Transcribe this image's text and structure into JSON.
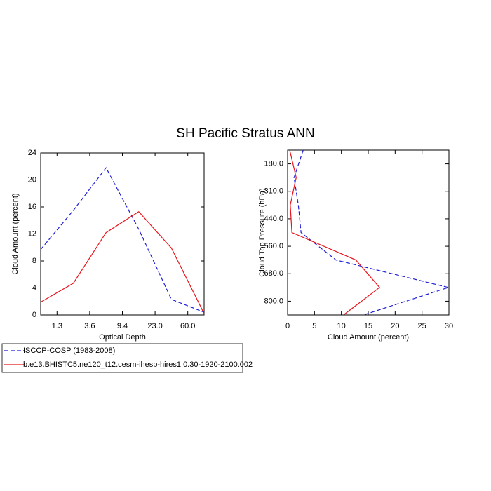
{
  "title": "SH Pacific Stratus ANN",
  "chart_data": [
    {
      "type": "line",
      "xlabel": "Optical Depth",
      "ylabel": "Cloud Amount (percent)",
      "x": [
        0,
        1,
        2,
        3,
        4,
        5
      ],
      "xlim": [
        0,
        5
      ],
      "xticks": [
        {
          "value": 0.5,
          "label": "1.3"
        },
        {
          "value": 1.5,
          "label": "3.6"
        },
        {
          "value": 2.5,
          "label": "9.4"
        },
        {
          "value": 3.5,
          "label": "23.0"
        },
        {
          "value": 4.5,
          "label": "60.0"
        }
      ],
      "ylim": [
        0,
        24
      ],
      "yticks": [
        0,
        4,
        8,
        12,
        16,
        20,
        24
      ],
      "legend": "below",
      "series": [
        {
          "name": "ISCCP-COSP (1983-2008)",
          "color": "#1f1fd6",
          "dash": "dashed",
          "values": [
            9.7,
            15.5,
            21.8,
            12.7,
            2.3,
            0.4
          ]
        },
        {
          "name": "b.e13.BHISTC5.ne120_t12.cesm-ihesp-hires1.0.30-1920-2100.002",
          "color": "#e8141c",
          "dash": "solid",
          "values": [
            1.9,
            4.7,
            12.2,
            15.3,
            9.9,
            0.2
          ]
        }
      ]
    },
    {
      "type": "line",
      "orientation": "horizontal",
      "xlabel": "Cloud Amount (percent)",
      "ylabel": "Cloud Top Pressure (hPa)",
      "y": [
        0,
        1,
        2,
        3,
        4,
        5,
        6
      ],
      "ylim": [
        6,
        0
      ],
      "yticks": [
        {
          "value": 0.5,
          "label": "180.0"
        },
        {
          "value": 1.5,
          "label": "310.0"
        },
        {
          "value": 2.5,
          "label": "440.0"
        },
        {
          "value": 3.5,
          "label": "560.0"
        },
        {
          "value": 4.5,
          "label": "680.0"
        },
        {
          "value": 5.5,
          "label": "800.0"
        }
      ],
      "xlim": [
        0,
        30
      ],
      "xticks": [
        0,
        5,
        10,
        15,
        20,
        25,
        30
      ],
      "series": [
        {
          "color": "#1f1fd6",
          "dash": "dashed",
          "values": [
            2.9,
            1.2,
            2.0,
            2.5,
            9.0,
            29.9,
            14.1
          ]
        },
        {
          "color": "#e8141c",
          "dash": "solid",
          "values": [
            0.4,
            1.6,
            0.5,
            0.8,
            12.7,
            17.1,
            10.4
          ]
        }
      ]
    }
  ]
}
